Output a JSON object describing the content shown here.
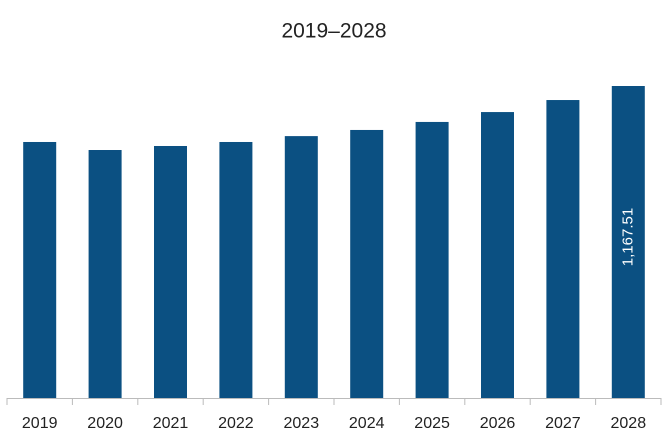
{
  "chart_data": {
    "type": "bar",
    "title": "2019–2028",
    "categories": [
      "2019",
      "2020",
      "2021",
      "2022",
      "2023",
      "2024",
      "2025",
      "2026",
      "2027",
      "2028"
    ],
    "values": [
      958,
      928,
      943,
      958,
      980,
      1003,
      1033,
      1070,
      1115,
      1167.51
    ],
    "value_labels": [
      null,
      null,
      null,
      null,
      null,
      null,
      null,
      null,
      null,
      "1,167.51"
    ],
    "color": "#0b5082"
  }
}
